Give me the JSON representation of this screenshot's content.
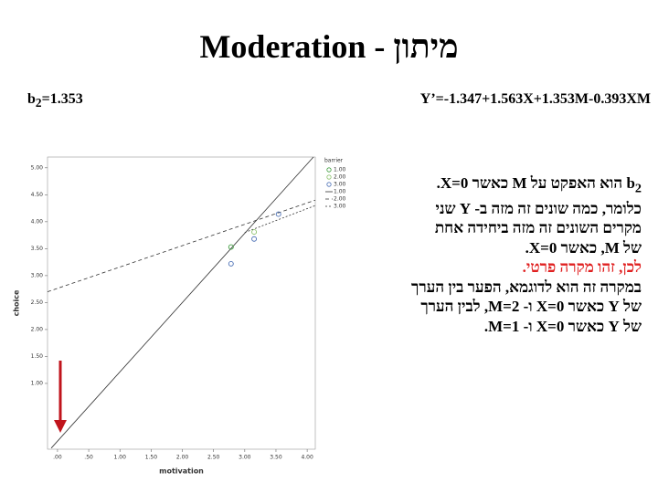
{
  "title": "Moderation - מיתון",
  "left_formula": {
    "base": "b",
    "sub": "2",
    "rest": "=1.353"
  },
  "right_formula": "Y’=-1.347+1.563X+1.353M-0.393XM",
  "text": {
    "first": {
      "base": "b",
      "sub": "2",
      "rest": "הוא האפקט על M כאשר X=0."
    },
    "lines": [
      "כלומר, כמה שונים זה מזה ב- Y שני",
      "מקרים השונים זה מזה ביחידה אחת",
      "של M, כאשר X=0."
    ],
    "highlight": "לכן, זהו מקרה פרטי.",
    "after": [
      "במקרה זה הוא לדוגמא, הפער בין הערך",
      "של Y כאשר X=0 ו- M=2, לבין הערך",
      "של Y כאשר X=0 ו- M=1."
    ]
  },
  "chart_data": {
    "type": "scatter",
    "x_label": "motivation",
    "y_label": "choice",
    "legend_title": "barrier",
    "xlim": [
      -0.16,
      4.13
    ],
    "ylim": [
      -0.22,
      5.2
    ],
    "xticks": [
      {
        "value": 0,
        "label": ".00"
      },
      {
        "value": 0.5,
        "label": ".50"
      },
      {
        "value": 1,
        "label": "1.00"
      },
      {
        "value": 1.5,
        "label": "1.50"
      },
      {
        "value": 2,
        "label": "2.00"
      },
      {
        "value": 2.5,
        "label": "2.50"
      },
      {
        "value": 3,
        "label": "3.00"
      },
      {
        "value": 3.5,
        "label": "3.50"
      },
      {
        "value": 4,
        "label": "4.00"
      }
    ],
    "yticks": [
      {
        "value": 1,
        "label": "1.00"
      },
      {
        "value": 1.5,
        "label": "1.50"
      },
      {
        "value": 2,
        "label": "2.00"
      },
      {
        "value": 2.5,
        "label": "2.50"
      },
      {
        "value": 3,
        "label": "3.00"
      },
      {
        "value": 3.5,
        "label": "3.50"
      },
      {
        "value": 4,
        "label": "4.00"
      },
      {
        "value": 4.5,
        "label": "4.50"
      },
      {
        "value": 5,
        "label": "5.00"
      }
    ],
    "series": [
      {
        "name": "1.00",
        "color": "#3a9a3a",
        "x": [
          2.78
        ],
        "values": [
          3.53
        ]
      },
      {
        "name": "2.00",
        "color": "#8ac06a",
        "x": [
          3.15
        ],
        "values": [
          3.81
        ]
      },
      {
        "name": "3.00",
        "color": "#4a6fb5",
        "x": [
          2.78,
          3.15,
          3.54
        ],
        "values": [
          3.22,
          3.68,
          4.14
        ]
      }
    ],
    "fit_lines": [
      {
        "name": "1.00",
        "dash": "none",
        "x": [
          -0.1,
          4.1
        ],
        "values": [
          -0.2,
          5.2
        ]
      },
      {
        "name": "2.00",
        "dash": "4 3",
        "x": [
          -0.16,
          4.13
        ],
        "values": [
          2.7,
          4.4
        ]
      },
      {
        "name": "3.00",
        "dash": "2 2",
        "x": [
          3.0,
          4.13
        ],
        "values": [
          3.8,
          4.3
        ]
      }
    ]
  }
}
